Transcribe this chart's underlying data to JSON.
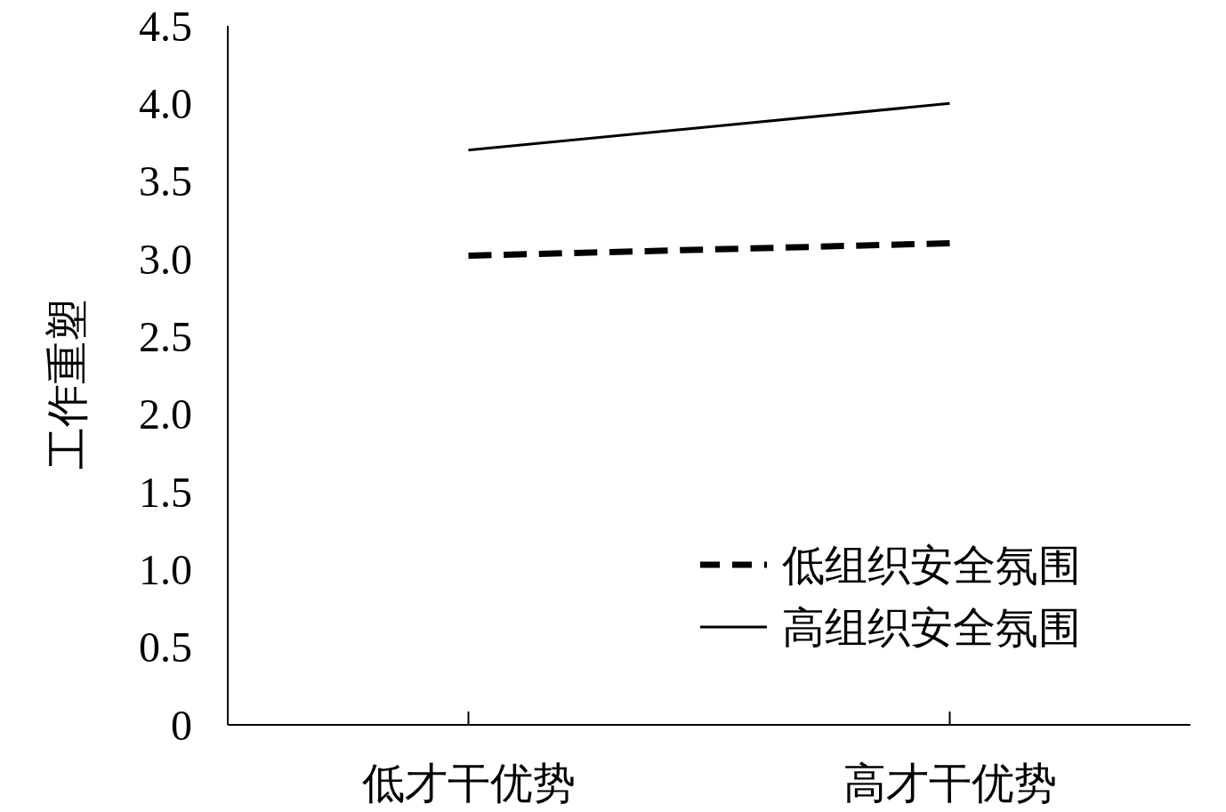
{
  "chart_data": {
    "type": "line",
    "ylabel": "工作重塑",
    "categories": [
      "低才干优势",
      "高才干优势"
    ],
    "series": [
      {
        "name": "低组织安全氛围",
        "color": "#000000",
        "line_style": "dashed",
        "values": [
          3.02,
          3.1
        ]
      },
      {
        "name": "高组织安全氛围",
        "color": "#000000",
        "line_style": "solid",
        "values": [
          3.7,
          4.0
        ]
      }
    ],
    "ylim": [
      0,
      4.5
    ],
    "yticks": [
      0,
      0.5,
      {
        "value": 1,
        "label": "1.0"
      },
      1.5,
      {
        "value": 2,
        "label": "2.0"
      },
      2.5,
      {
        "value": 3,
        "label": "3.0"
      },
      3.5,
      {
        "value": 4,
        "label": "4.0"
      },
      4.5
    ],
    "legend": "bottom right",
    "grid": false
  }
}
